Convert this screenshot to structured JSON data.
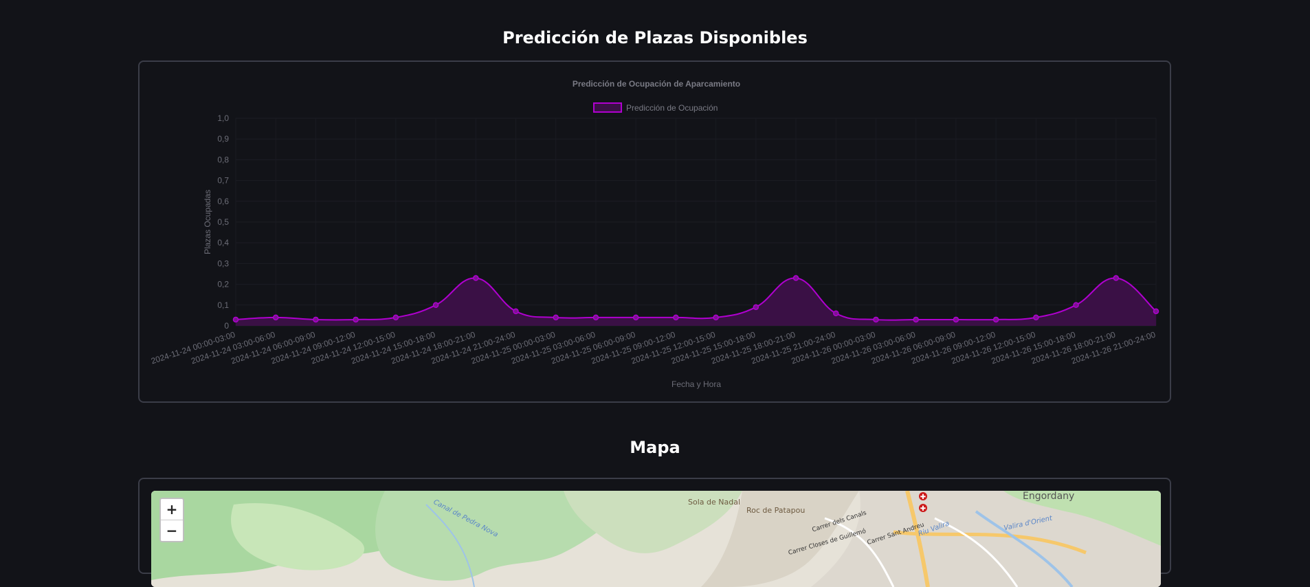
{
  "header": {
    "title": "Predicción de Plazas Disponibles"
  },
  "map_section": {
    "title": "Mapa",
    "zoom_in_label": "+",
    "zoom_out_label": "−",
    "labels": {
      "sola_de_nadal": "Sola de Nadal",
      "roc_de_patapou": "Roc de Patapou",
      "engordany": "Engordany",
      "carrer_dels_canals": "Carrer dels Canals",
      "carrer_sant_andreu": "Carrer Sant Andreu",
      "carrer_closes_de_guillemo": "Carrer Closes de Guillemó",
      "riu_valira": "Riu Valira",
      "valira_d_orient": "Valira d'Orient",
      "canal_de_pedra": "Canal de Pedra Nova"
    }
  },
  "chart_data": {
    "type": "line",
    "title": "Predicción de Ocupación de Aparcamiento",
    "xlabel": "Fecha y Hora",
    "ylabel": "Plazas Ocupadas",
    "ylim": [
      0,
      1
    ],
    "yticks": [
      "0",
      "0,1",
      "0,2",
      "0,3",
      "0,4",
      "0,5",
      "0,6",
      "0,7",
      "0,8",
      "0,9",
      "1,0"
    ],
    "grid": true,
    "legend": "top-center",
    "categories": [
      "2024-11-24 00:00-03:00",
      "2024-11-24 03:00-06:00",
      "2024-11-24 06:00-09:00",
      "2024-11-24 09:00-12:00",
      "2024-11-24 12:00-15:00",
      "2024-11-24 15:00-18:00",
      "2024-11-24 18:00-21:00",
      "2024-11-24 21:00-24:00",
      "2024-11-25 00:00-03:00",
      "2024-11-25 03:00-06:00",
      "2024-11-25 06:00-09:00",
      "2024-11-25 09:00-12:00",
      "2024-11-25 12:00-15:00",
      "2024-11-25 15:00-18:00",
      "2024-11-25 18:00-21:00",
      "2024-11-25 21:00-24:00",
      "2024-11-26 00:00-03:00",
      "2024-11-26 03:00-06:00",
      "2024-11-26 06:00-09:00",
      "2024-11-26 09:00-12:00",
      "2024-11-26 12:00-15:00",
      "2024-11-26 15:00-18:00",
      "2024-11-26 18:00-21:00",
      "2024-11-26 21:00-24:00"
    ],
    "series": [
      {
        "name": "Predicción de Ocupación",
        "color": "#b000d0",
        "fill": "#3a1045",
        "values": [
          0.03,
          0.04,
          0.03,
          0.03,
          0.04,
          0.1,
          0.23,
          0.07,
          0.04,
          0.04,
          0.04,
          0.04,
          0.04,
          0.09,
          0.23,
          0.06,
          0.03,
          0.03,
          0.03,
          0.03,
          0.04,
          0.1,
          0.23,
          0.07
        ]
      }
    ]
  }
}
